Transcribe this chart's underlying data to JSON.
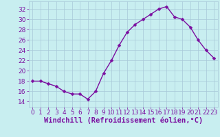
{
  "x": [
    0,
    1,
    2,
    3,
    4,
    5,
    6,
    7,
    8,
    9,
    10,
    11,
    12,
    13,
    14,
    15,
    16,
    17,
    18,
    19,
    20,
    21,
    22,
    23
  ],
  "y": [
    18,
    18,
    17.5,
    17,
    16,
    15.5,
    15.5,
    14.5,
    16,
    19.5,
    22,
    25,
    27.5,
    29,
    30,
    31,
    32,
    32.5,
    30.5,
    30,
    28.5,
    26,
    24,
    22.5
  ],
  "line_color": "#7b0fa0",
  "marker_color": "#7b0fa0",
  "bg_color": "#c8eef0",
  "grid_color": "#a8c8d8",
  "xlabel": "Windchill (Refroidissement éolien,°C)",
  "xlabel_color": "#7b0fa0",
  "yticks": [
    14,
    16,
    18,
    20,
    22,
    24,
    26,
    28,
    30,
    32
  ],
  "ylim": [
    13.0,
    33.5
  ],
  "xlim": [
    -0.5,
    23.5
  ],
  "tick_color": "#7b0fa0",
  "tick_fontsize": 6.5,
  "xlabel_fontsize": 7.5,
  "marker_size": 2.5,
  "line_width": 1.0
}
